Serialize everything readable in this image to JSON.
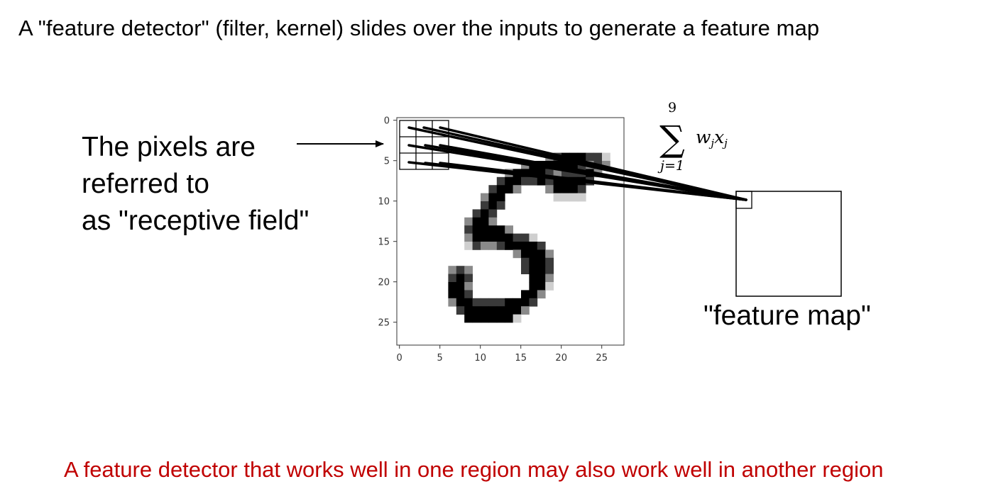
{
  "heading": "A \"feature detector\" (filter, kernel) slides over the inputs to generate a feature map",
  "receptive_field_label": {
    "lines": [
      "The pixels are",
      "referred to",
      "as \"receptive field\""
    ]
  },
  "feature_map_label": "\"feature map\"",
  "formula": {
    "upper_limit": "9",
    "lower_limit": "j=1",
    "sum_symbol": "∑",
    "term": "w_j x_j"
  },
  "footer": "A feature detector that works well in one region may also work well in another region",
  "colors": {
    "footer_text": "#c00000",
    "text": "#000000",
    "axis": "#333333"
  },
  "digit_plot": {
    "title": "",
    "xlabel": "",
    "ylabel": "",
    "x_ticks": [
      "0",
      "5",
      "10",
      "15",
      "20",
      "25"
    ],
    "y_ticks": [
      "0",
      "5",
      "10",
      "15",
      "20",
      "25"
    ],
    "grid_size": 28,
    "pixels": [
      [
        4,
        18,
        3
      ],
      [
        4,
        19,
        2
      ],
      [
        4,
        20,
        1
      ],
      [
        4,
        21,
        1
      ],
      [
        4,
        22,
        1
      ],
      [
        4,
        23,
        2
      ],
      [
        4,
        24,
        2
      ],
      [
        4,
        25,
        4
      ],
      [
        5,
        15,
        3
      ],
      [
        5,
        16,
        1
      ],
      [
        5,
        17,
        1
      ],
      [
        5,
        18,
        1
      ],
      [
        5,
        19,
        1
      ],
      [
        5,
        20,
        1
      ],
      [
        5,
        21,
        1
      ],
      [
        5,
        22,
        2
      ],
      [
        5,
        23,
        3
      ],
      [
        5,
        24,
        2
      ],
      [
        5,
        25,
        3
      ],
      [
        6,
        13,
        3
      ],
      [
        6,
        14,
        1
      ],
      [
        6,
        15,
        1
      ],
      [
        6,
        16,
        1
      ],
      [
        6,
        17,
        1
      ],
      [
        6,
        18,
        2
      ],
      [
        6,
        19,
        3
      ],
      [
        6,
        20,
        2
      ],
      [
        6,
        21,
        2
      ],
      [
        6,
        22,
        2
      ],
      [
        6,
        23,
        1
      ],
      [
        6,
        24,
        3
      ],
      [
        7,
        12,
        2
      ],
      [
        7,
        13,
        1
      ],
      [
        7,
        14,
        1
      ],
      [
        7,
        15,
        2
      ],
      [
        7,
        16,
        2
      ],
      [
        7,
        17,
        1
      ],
      [
        7,
        18,
        2
      ],
      [
        7,
        19,
        1
      ],
      [
        7,
        20,
        1
      ],
      [
        7,
        21,
        1
      ],
      [
        7,
        22,
        1
      ],
      [
        7,
        23,
        2
      ],
      [
        8,
        11,
        2
      ],
      [
        8,
        12,
        1
      ],
      [
        8,
        13,
        1
      ],
      [
        8,
        14,
        3
      ],
      [
        8,
        18,
        3
      ],
      [
        8,
        19,
        1
      ],
      [
        8,
        20,
        1
      ],
      [
        8,
        21,
        1
      ],
      [
        8,
        22,
        2
      ],
      [
        9,
        10,
        3
      ],
      [
        9,
        11,
        1
      ],
      [
        9,
        12,
        1
      ],
      [
        9,
        19,
        4
      ],
      [
        9,
        20,
        4
      ],
      [
        9,
        21,
        4
      ],
      [
        9,
        22,
        4
      ],
      [
        10,
        10,
        2
      ],
      [
        10,
        11,
        1
      ],
      [
        10,
        12,
        2
      ],
      [
        11,
        9,
        2
      ],
      [
        11,
        10,
        1
      ],
      [
        11,
        11,
        2
      ],
      [
        12,
        8,
        3
      ],
      [
        12,
        9,
        1
      ],
      [
        12,
        10,
        1
      ],
      [
        12,
        11,
        3
      ],
      [
        13,
        8,
        2
      ],
      [
        13,
        9,
        1
      ],
      [
        13,
        10,
        1
      ],
      [
        13,
        11,
        1
      ],
      [
        13,
        12,
        1
      ],
      [
        13,
        13,
        3
      ],
      [
        14,
        8,
        3
      ],
      [
        14,
        9,
        1
      ],
      [
        14,
        10,
        1
      ],
      [
        14,
        11,
        1
      ],
      [
        14,
        12,
        1
      ],
      [
        14,
        13,
        1
      ],
      [
        14,
        14,
        2
      ],
      [
        14,
        15,
        2
      ],
      [
        14,
        16,
        4
      ],
      [
        15,
        8,
        4
      ],
      [
        15,
        9,
        2
      ],
      [
        15,
        10,
        3
      ],
      [
        15,
        11,
        3
      ],
      [
        15,
        12,
        2
      ],
      [
        15,
        13,
        1
      ],
      [
        15,
        14,
        1
      ],
      [
        15,
        15,
        1
      ],
      [
        15,
        16,
        1
      ],
      [
        15,
        17,
        2
      ],
      [
        16,
        14,
        3
      ],
      [
        16,
        15,
        1
      ],
      [
        16,
        16,
        1
      ],
      [
        16,
        17,
        1
      ],
      [
        16,
        18,
        3
      ],
      [
        17,
        15,
        2
      ],
      [
        17,
        16,
        1
      ],
      [
        17,
        17,
        1
      ],
      [
        17,
        18,
        2
      ],
      [
        18,
        15,
        2
      ],
      [
        18,
        16,
        1
      ],
      [
        18,
        17,
        1
      ],
      [
        18,
        18,
        2
      ],
      [
        19,
        16,
        1
      ],
      [
        19,
        17,
        1
      ],
      [
        19,
        18,
        3
      ],
      [
        20,
        16,
        1
      ],
      [
        20,
        17,
        1
      ],
      [
        20,
        18,
        4
      ],
      [
        21,
        15,
        1
      ],
      [
        21,
        16,
        1
      ],
      [
        21,
        17,
        3
      ],
      [
        22,
        14,
        1
      ],
      [
        22,
        15,
        1
      ],
      [
        22,
        16,
        2
      ],
      [
        23,
        13,
        1
      ],
      [
        23,
        14,
        1
      ],
      [
        23,
        15,
        3
      ],
      [
        24,
        12,
        1
      ],
      [
        24,
        13,
        1
      ],
      [
        24,
        14,
        4
      ],
      [
        18,
        6,
        3
      ],
      [
        18,
        7,
        2
      ],
      [
        18,
        8,
        3
      ],
      [
        19,
        6,
        2
      ],
      [
        19,
        7,
        1
      ],
      [
        19,
        8,
        2
      ],
      [
        20,
        6,
        1
      ],
      [
        20,
        7,
        1
      ],
      [
        20,
        8,
        3
      ],
      [
        21,
        6,
        1
      ],
      [
        21,
        7,
        1
      ],
      [
        21,
        8,
        2
      ],
      [
        22,
        6,
        3
      ],
      [
        22,
        7,
        1
      ],
      [
        22,
        8,
        1
      ],
      [
        22,
        9,
        2
      ],
      [
        22,
        10,
        2
      ],
      [
        22,
        11,
        2
      ],
      [
        22,
        12,
        2
      ],
      [
        22,
        13,
        1
      ],
      [
        23,
        7,
        2
      ],
      [
        23,
        8,
        1
      ],
      [
        23,
        9,
        1
      ],
      [
        23,
        10,
        1
      ],
      [
        23,
        11,
        1
      ],
      [
        23,
        12,
        1
      ],
      [
        24,
        8,
        1
      ],
      [
        24,
        9,
        1
      ],
      [
        24,
        10,
        1
      ],
      [
        24,
        11,
        1
      ]
    ]
  }
}
